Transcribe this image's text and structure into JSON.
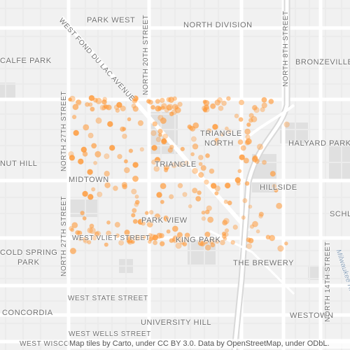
{
  "map": {
    "neighborhoods": [
      {
        "id": "park-west",
        "text": "PARK WEST"
      },
      {
        "id": "north-division",
        "text": "NORTH DIVISION"
      },
      {
        "id": "calfe-park",
        "text": "CALFE PARK"
      },
      {
        "id": "bronzeville",
        "text": "BRONZEVILLE"
      },
      {
        "id": "triangle-north-1",
        "text": "TRIANGLE"
      },
      {
        "id": "triangle-north-2",
        "text": "NORTH"
      },
      {
        "id": "halyard-park",
        "text": "HALYARD PARK"
      },
      {
        "id": "nut-hill",
        "text": "NUT HILL"
      },
      {
        "id": "triangle",
        "text": "TRIANGLE"
      },
      {
        "id": "midtown",
        "text": "MIDTOWN"
      },
      {
        "id": "hillside",
        "text": "HILLSIDE"
      },
      {
        "id": "park-view",
        "text": "PARK VIEW"
      },
      {
        "id": "schl",
        "text": "SCHL"
      },
      {
        "id": "cold-spring-1",
        "text": "COLD SPRING"
      },
      {
        "id": "cold-spring-2",
        "text": "PARK"
      },
      {
        "id": "king-park",
        "text": "KING PARK"
      },
      {
        "id": "the-brewery",
        "text": "THE BREWERY"
      },
      {
        "id": "concordia",
        "text": "CONCORDIA"
      },
      {
        "id": "university-hill",
        "text": "UNIVERSITY HILL"
      },
      {
        "id": "westown",
        "text": "WESTOWN"
      }
    ],
    "streets": [
      {
        "id": "west-fond-du-lac",
        "text": "WEST FOND DU LAC AVENUE"
      },
      {
        "id": "north-20th",
        "text": "NORTH 20TH STREET"
      },
      {
        "id": "north-27th",
        "text": "NORTH 27TH STREET"
      },
      {
        "id": "north-27th-b",
        "text": "NORTH 27TH STREET"
      },
      {
        "id": "north-8th",
        "text": "NORTH 8TH STREET"
      },
      {
        "id": "north-14th",
        "text": "NORTH 14TH STREET"
      },
      {
        "id": "west-vliet",
        "text": "WEST VLIET STREET"
      },
      {
        "id": "west-state",
        "text": "WEST STATE STREET"
      },
      {
        "id": "west-wells",
        "text": "WEST WELLS STREET"
      },
      {
        "id": "west-wisconsin",
        "text": "WEST WISCO"
      },
      {
        "id": "milwaukee-river",
        "text": "Milwaukee River"
      }
    ],
    "attribution": "Map tiles by Carto, under CC BY 3.0. Data by OpenStreetMap, under ODbL.",
    "colors": {
      "road": "#ffffff",
      "minor_road": "#ebebeb",
      "block": "#e7e7e7",
      "park": "#e0e0e0",
      "dot": "#ff9b3c",
      "dot_edge": "#f5871e"
    },
    "hotspot_count": 300
  }
}
